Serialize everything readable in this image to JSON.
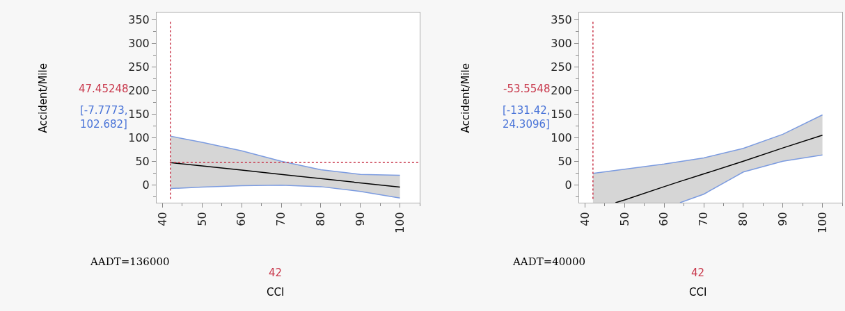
{
  "chart_data": [
    {
      "type": "line",
      "xlabel": "CCI",
      "ylabel": "Accident/Mile",
      "xlim": [
        38.5,
        105
      ],
      "xticks": [
        40,
        50,
        60,
        70,
        80,
        90,
        100
      ],
      "ylim": [
        -38,
        365
      ],
      "yticks": [
        0,
        50,
        100,
        150,
        200,
        250,
        300,
        350
      ],
      "marker": "none",
      "series": [
        {
          "color": "#000000",
          "x": [
            42,
            50,
            60,
            70,
            80,
            90,
            100
          ],
          "values": [
            47,
            40,
            31,
            22,
            13,
            4,
            -5
          ],
          "lower": [
            -8,
            -5,
            -2,
            -1,
            -4,
            -14,
            -28
          ],
          "upper": [
            103,
            90,
            72,
            50,
            32,
            22,
            20
          ]
        },
        {
          "color": "#7b9be0",
          "x": [
            42,
            50,
            60,
            70,
            80,
            90,
            100
          ],
          "values": [
            103,
            90,
            72,
            50,
            32,
            22,
            20
          ]
        },
        {
          "color": "#7b9be0",
          "x": [
            42,
            50,
            60,
            70,
            80,
            90,
            100
          ],
          "values": [
            -8,
            -5,
            -2,
            -1,
            -4,
            -14,
            -28
          ]
        }
      ],
      "ref_lines": [
        {
          "axis": "x",
          "value": 42,
          "color": "#c8364a",
          "line_style": "dotted"
        },
        {
          "axis": "y",
          "value": 47.45248,
          "color": "#c8364a",
          "line_style": "dotted"
        }
      ],
      "annotations": [
        "47.45248",
        "[-7.7773, 102.682]",
        "AADT=136000",
        "42"
      ]
    },
    {
      "type": "line",
      "xlabel": "CCI",
      "ylabel": "Accident/Mile",
      "xlim": [
        38.5,
        105
      ],
      "xticks": [
        40,
        50,
        60,
        70,
        80,
        90,
        100
      ],
      "ylim": [
        -38,
        365
      ],
      "yticks": [
        0,
        50,
        100,
        150,
        200,
        250,
        300,
        350
      ],
      "marker": "none",
      "series": [
        {
          "color": "#000000",
          "x": [
            42,
            47.7,
            50,
            60,
            64,
            70,
            80,
            90,
            100
          ],
          "values": [
            null,
            -38,
            -32,
            -4,
            7,
            23,
            50,
            78,
            105
          ],
          "lower": [
            -38,
            -38,
            -38,
            -38,
            -38,
            -20,
            27,
            50,
            63
          ],
          "upper": [
            24,
            31,
            33,
            44,
            49,
            57,
            77,
            107,
            148
          ]
        },
        {
          "color": "#7b9be0",
          "x": [
            42,
            50,
            60,
            70,
            80,
            90,
            100
          ],
          "values": [
            24,
            33,
            44,
            57,
            77,
            107,
            148
          ]
        },
        {
          "color": "#7b9be0",
          "x": [
            64,
            70,
            80,
            90,
            100
          ],
          "values": [
            -38,
            -20,
            27,
            50,
            63
          ]
        }
      ],
      "ref_lines": [
        {
          "axis": "x",
          "value": 42,
          "color": "#c8364a",
          "line_style": "dotted"
        }
      ],
      "annotations": [
        "-53.5548",
        "[-131.42, 24.3096]",
        "AADT=40000",
        "42"
      ]
    }
  ]
}
